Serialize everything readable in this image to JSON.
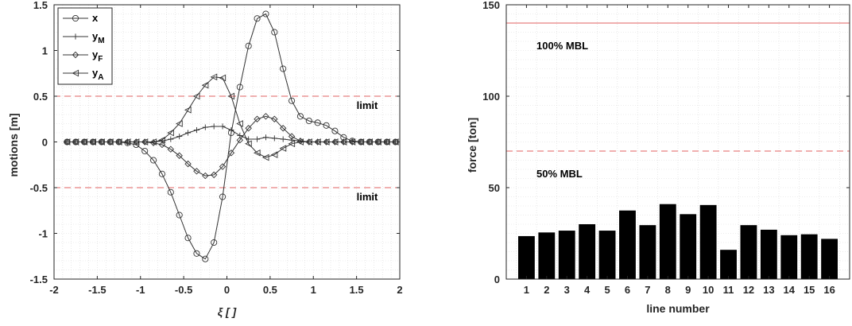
{
  "chart_data": [
    {
      "type": "line",
      "xlabel": "ξ [ ]",
      "ylabel": "motions [m]",
      "xlim": [
        -2,
        2
      ],
      "ylim": [
        -1.5,
        1.5
      ],
      "xticks": [
        "-2",
        "-1.5",
        "-1",
        "-0.5",
        "0",
        "0.5",
        "1",
        "1.5",
        "2"
      ],
      "yticks": [
        "-1.5",
        "-1",
        "-0.5",
        "0",
        "0.5",
        "1",
        "1.5"
      ],
      "grid": "minor dotted",
      "legend": {
        "placement": "top-left"
      },
      "reference_lines": [
        {
          "y": 0.5,
          "label": "limit",
          "color": "#e06060"
        },
        {
          "y": -0.5,
          "label": "limit",
          "color": "#e06060"
        }
      ],
      "series": [
        {
          "name": "x",
          "marker": "circle",
          "x": [
            -1.85,
            -1.75,
            -1.65,
            -1.55,
            -1.45,
            -1.35,
            -1.25,
            -1.15,
            -1.05,
            -0.95,
            -0.85,
            -0.75,
            -0.65,
            -0.55,
            -0.45,
            -0.35,
            -0.25,
            -0.15,
            -0.05,
            0.05,
            0.15,
            0.25,
            0.35,
            0.45,
            0.55,
            0.65,
            0.75,
            0.85,
            0.95,
            1.05,
            1.15,
            1.25,
            1.35,
            1.45,
            1.55,
            1.65,
            1.75,
            1.85,
            1.95
          ],
          "y": [
            0,
            0,
            0,
            0,
            0,
            0,
            0,
            -0.01,
            -0.03,
            -0.1,
            -0.2,
            -0.35,
            -0.55,
            -0.8,
            -1.05,
            -1.22,
            -1.28,
            -1.1,
            -0.6,
            0.1,
            0.6,
            1.05,
            1.35,
            1.4,
            1.2,
            0.8,
            0.45,
            0.28,
            0.23,
            0.21,
            0.18,
            0.12,
            0.05,
            0.01,
            0,
            0,
            0,
            0,
            0
          ]
        },
        {
          "name": "y_M",
          "marker": "plus",
          "x": [
            -1.85,
            -1.75,
            -1.65,
            -1.55,
            -1.45,
            -1.35,
            -1.25,
            -1.15,
            -1.05,
            -0.95,
            -0.85,
            -0.75,
            -0.65,
            -0.55,
            -0.45,
            -0.35,
            -0.25,
            -0.15,
            -0.05,
            0.05,
            0.15,
            0.25,
            0.35,
            0.45,
            0.55,
            0.65,
            0.75,
            0.85,
            0.95,
            1.05,
            1.15,
            1.25,
            1.35,
            1.45,
            1.55,
            1.65,
            1.75,
            1.85,
            1.95
          ],
          "y": [
            0,
            0,
            0,
            0,
            0,
            0,
            0,
            0,
            0,
            0,
            0,
            0.01,
            0.03,
            0.06,
            0.1,
            0.13,
            0.16,
            0.17,
            0.17,
            0.13,
            0.07,
            0.03,
            0.03,
            0.05,
            0.04,
            0.03,
            0.02,
            0.01,
            0,
            0,
            0,
            0,
            0,
            0,
            0,
            0,
            0,
            0,
            0
          ]
        },
        {
          "name": "y_F",
          "marker": "diamond",
          "x": [
            -1.85,
            -1.75,
            -1.65,
            -1.55,
            -1.45,
            -1.35,
            -1.25,
            -1.15,
            -1.05,
            -0.95,
            -0.85,
            -0.75,
            -0.65,
            -0.55,
            -0.45,
            -0.35,
            -0.25,
            -0.15,
            -0.05,
            0.05,
            0.15,
            0.25,
            0.35,
            0.45,
            0.55,
            0.65,
            0.75,
            0.85,
            0.95,
            1.05,
            1.15,
            1.25,
            1.35,
            1.45,
            1.55,
            1.65,
            1.75,
            1.85,
            1.95
          ],
          "y": [
            0,
            0,
            0,
            0,
            0,
            0,
            0,
            0,
            0,
            0,
            -0.01,
            -0.03,
            -0.08,
            -0.15,
            -0.24,
            -0.32,
            -0.37,
            -0.36,
            -0.27,
            -0.12,
            0.02,
            0.15,
            0.25,
            0.28,
            0.25,
            0.15,
            0.06,
            0.01,
            0,
            0,
            0,
            0,
            0,
            0,
            0,
            0,
            0,
            0,
            0
          ]
        },
        {
          "name": "y_A",
          "marker": "triangle-left",
          "x": [
            -1.85,
            -1.75,
            -1.65,
            -1.55,
            -1.45,
            -1.35,
            -1.25,
            -1.15,
            -1.05,
            -0.95,
            -0.85,
            -0.75,
            -0.65,
            -0.55,
            -0.45,
            -0.35,
            -0.25,
            -0.15,
            -0.05,
            0.05,
            0.15,
            0.25,
            0.35,
            0.45,
            0.55,
            0.65,
            0.75,
            0.85,
            0.95,
            1.05,
            1.15,
            1.25,
            1.35,
            1.45,
            1.55,
            1.65,
            1.75,
            1.85,
            1.95
          ],
          "y": [
            0,
            0,
            0,
            0,
            0,
            0,
            0,
            0,
            0,
            0,
            0,
            0.02,
            0.1,
            0.2,
            0.35,
            0.5,
            0.62,
            0.71,
            0.7,
            0.5,
            0.2,
            -0.02,
            -0.12,
            -0.17,
            -0.14,
            -0.07,
            -0.02,
            0,
            0,
            0,
            0,
            0,
            0,
            0,
            0,
            0,
            0,
            0,
            0
          ]
        }
      ]
    },
    {
      "type": "bar",
      "xlabel": "line number",
      "ylabel": "force [ton]",
      "ylim": [
        0,
        150
      ],
      "yticks": [
        "0",
        "50",
        "100",
        "150"
      ],
      "grid": "minor dotted",
      "categories": [
        "1",
        "2",
        "3",
        "4",
        "5",
        "6",
        "7",
        "8",
        "9",
        "10",
        "11",
        "12",
        "13",
        "14",
        "15",
        "16"
      ],
      "values": [
        23.5,
        25.5,
        26.5,
        30,
        26.5,
        37.5,
        29.5,
        41,
        35.5,
        40.5,
        16,
        29.5,
        27,
        24,
        24.5,
        22
      ],
      "reference_lines": [
        {
          "y": 140,
          "label": "100% MBL",
          "color": "#e06060"
        },
        {
          "y": 70,
          "label": "50% MBL",
          "color": "#e06060"
        }
      ]
    }
  ]
}
